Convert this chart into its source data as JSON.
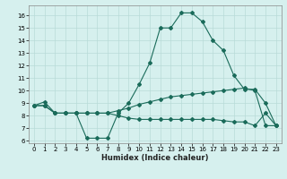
{
  "xlabel": "Humidex (Indice chaleur)",
  "xlim": [
    -0.5,
    23.5
  ],
  "ylim": [
    5.8,
    16.8
  ],
  "xticks": [
    0,
    1,
    2,
    3,
    4,
    5,
    6,
    7,
    8,
    9,
    10,
    11,
    12,
    13,
    14,
    15,
    16,
    17,
    18,
    19,
    20,
    21,
    22,
    23
  ],
  "yticks": [
    6,
    7,
    8,
    9,
    10,
    11,
    12,
    13,
    14,
    15,
    16
  ],
  "bg_color": "#d6f0ee",
  "grid_color": "#b8dbd8",
  "line_color": "#1a6b5a",
  "curve1_x": [
    0,
    1,
    2,
    3,
    4,
    5,
    6,
    7,
    8,
    9,
    10,
    11,
    12,
    13,
    14,
    15,
    16,
    17,
    18,
    19,
    20,
    21,
    22,
    23
  ],
  "curve1_y": [
    8.8,
    9.1,
    8.2,
    8.2,
    8.2,
    6.2,
    6.2,
    6.2,
    8.2,
    9.0,
    10.5,
    12.2,
    15.0,
    15.0,
    16.2,
    16.2,
    15.5,
    14.0,
    13.2,
    11.2,
    10.1,
    10.1,
    9.0,
    7.2
  ],
  "curve2_x": [
    0,
    1,
    2,
    3,
    4,
    5,
    6,
    7,
    8,
    9,
    10,
    11,
    12,
    13,
    14,
    15,
    16,
    17,
    18,
    19,
    20,
    21,
    22,
    23
  ],
  "curve2_y": [
    8.8,
    8.8,
    8.2,
    8.2,
    8.2,
    8.2,
    8.2,
    8.2,
    8.4,
    8.6,
    8.9,
    9.1,
    9.3,
    9.5,
    9.6,
    9.7,
    9.8,
    9.9,
    10.0,
    10.1,
    10.2,
    10.0,
    7.2,
    7.2
  ],
  "curve3_x": [
    0,
    1,
    2,
    3,
    4,
    5,
    6,
    7,
    8,
    9,
    10,
    11,
    12,
    13,
    14,
    15,
    16,
    17,
    18,
    19,
    20,
    21,
    22,
    23
  ],
  "curve3_y": [
    8.8,
    8.8,
    8.2,
    8.2,
    8.2,
    8.2,
    8.2,
    8.2,
    8.0,
    7.8,
    7.7,
    7.7,
    7.7,
    7.7,
    7.7,
    7.7,
    7.7,
    7.7,
    7.6,
    7.5,
    7.5,
    7.2,
    8.2,
    7.2
  ],
  "tick_fontsize": 5.0,
  "xlabel_fontsize": 6.0,
  "marker_size": 2.0,
  "linewidth": 0.8
}
